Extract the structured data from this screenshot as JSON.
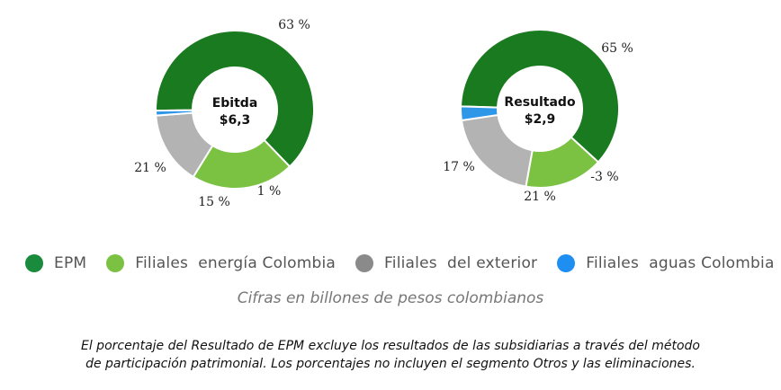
{
  "chart_data": [
    {
      "type": "pie",
      "variant": "donut",
      "center_title": "Ebitda",
      "center_value": "$6,3",
      "slices": [
        {
          "name": "EPM",
          "value": 63,
          "label": "63 %",
          "color": "#1a7a1f"
        },
        {
          "name": "Filiales energía Colombia",
          "value": 21,
          "label": "21 %",
          "color": "#7cc242"
        },
        {
          "name": "Filiales del exterior",
          "value": 15,
          "label": "15 %",
          "color": "#b3b3b3"
        },
        {
          "name": "Filiales aguas Colombia",
          "value": 1,
          "label": "1 %",
          "color": "#2f97e8"
        }
      ]
    },
    {
      "type": "pie",
      "variant": "donut",
      "center_title": "Resultado",
      "center_value": "$2,9",
      "slices": [
        {
          "name": "EPM",
          "value": 65,
          "label": "65 %",
          "color": "#1a7a1f"
        },
        {
          "name": "Filiales energía Colombia",
          "value": 17,
          "label": "17 %",
          "color": "#7cc242"
        },
        {
          "name": "Filiales del exterior",
          "value": 21,
          "label": "21 %",
          "color": "#b3b3b3"
        },
        {
          "name": "Filiales aguas Colombia",
          "value": -3,
          "label": "-3 %",
          "color": "#2f97e8"
        }
      ]
    }
  ],
  "legend": [
    {
      "label": "EPM",
      "color": "#1a8a3c"
    },
    {
      "label": "Filiales  energía Colombia",
      "color": "#7cc242"
    },
    {
      "label": "Filiales  del exterior",
      "color": "#8a8a8a"
    },
    {
      "label": "Filiales  aguas Colombia",
      "color": "#1f8ef1"
    }
  ],
  "units_note": "Cifras en billones de pesos colombianos",
  "footnote": {
    "line1": "El porcentaje del Resultado de EPM excluye los resultados de las subsidiarias a través del método",
    "line2": "de participación patrimonial. Los porcentajes no incluyen el segmento Otros y las eliminaciones."
  }
}
